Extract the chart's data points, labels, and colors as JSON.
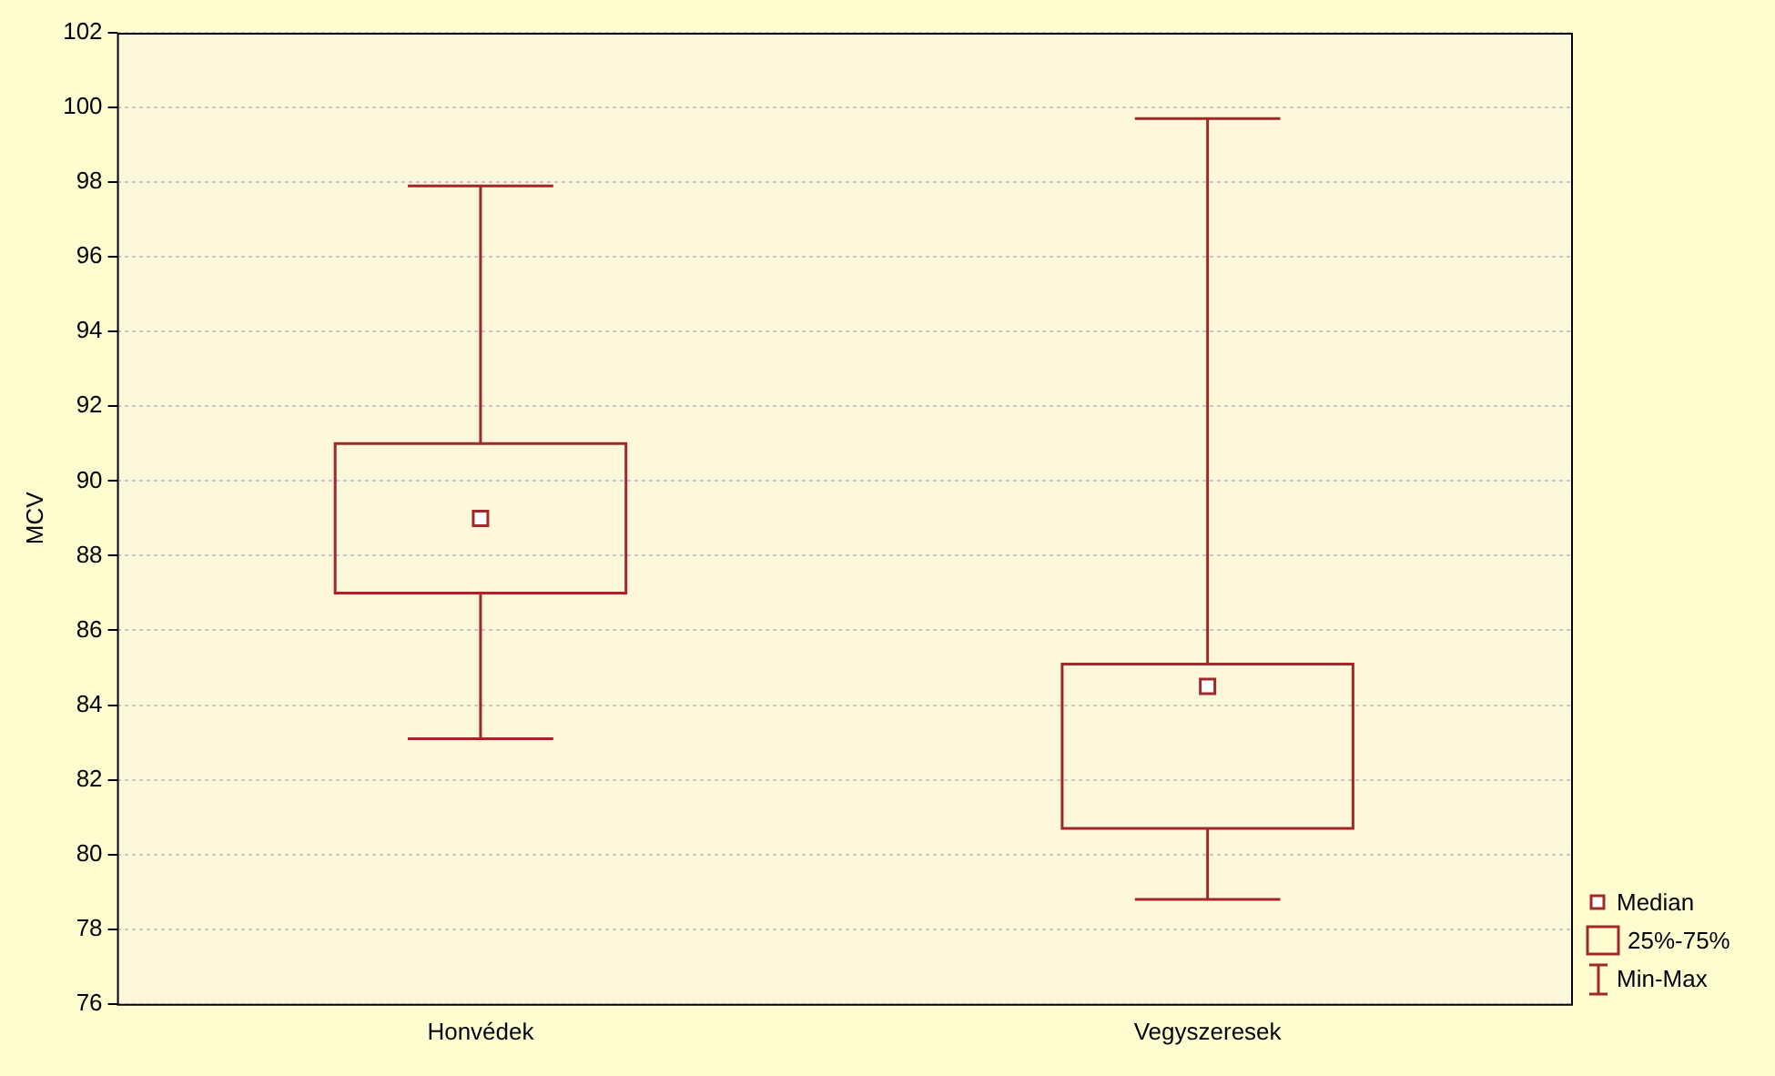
{
  "chart_data": {
    "type": "box",
    "ylabel": "MCV",
    "categories": [
      "Honvédek",
      "Vegyszeresek"
    ],
    "series": [
      {
        "color": "#a02828",
        "boxes": [
          {
            "low": 83.1,
            "q1": 87.0,
            "median": 89.0,
            "q3": 91.0,
            "high": 97.9
          },
          {
            "low": 78.8,
            "q1": 80.7,
            "median": 84.5,
            "q3": 85.1,
            "high": 99.7
          }
        ]
      }
    ],
    "ylim": [
      76,
      102
    ],
    "yticks": [
      76,
      78,
      80,
      82,
      84,
      86,
      88,
      90,
      92,
      94,
      96,
      98,
      100,
      102
    ],
    "grid": "y",
    "annotations": [
      "Median",
      "25%-75%",
      "Min-Max"
    ]
  }
}
